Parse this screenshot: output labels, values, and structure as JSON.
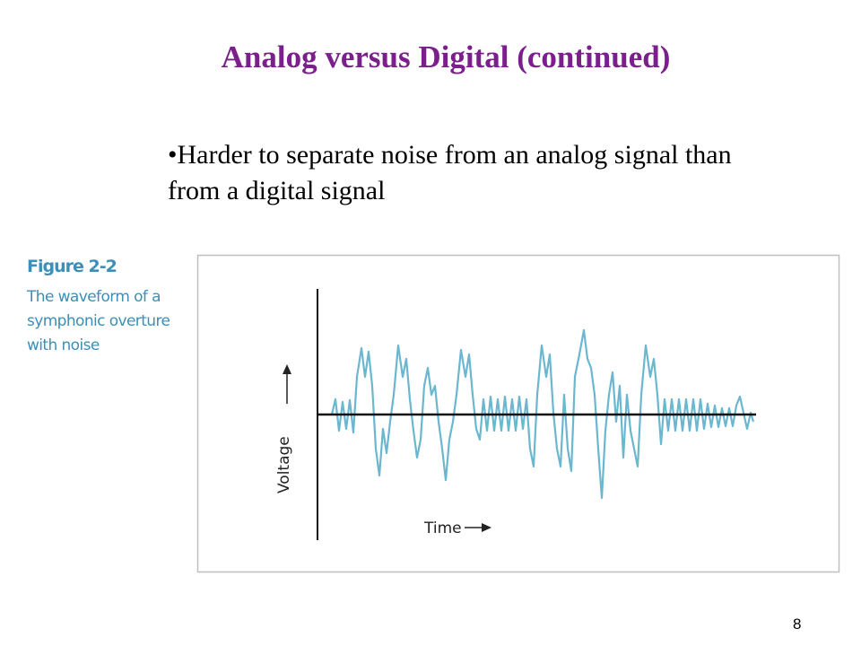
{
  "header": {
    "title": "Analog versus Digital (continued)"
  },
  "bullets": [
    "Harder to separate noise from an analog signal than from a digital signal"
  ],
  "figure": {
    "label": "Figure 2-2",
    "caption": [
      "The waveform of a",
      "symphonic overture",
      "with noise"
    ],
    "y_axis_label": "Voltage",
    "x_axis_label": "Time"
  },
  "page_number": "8"
}
